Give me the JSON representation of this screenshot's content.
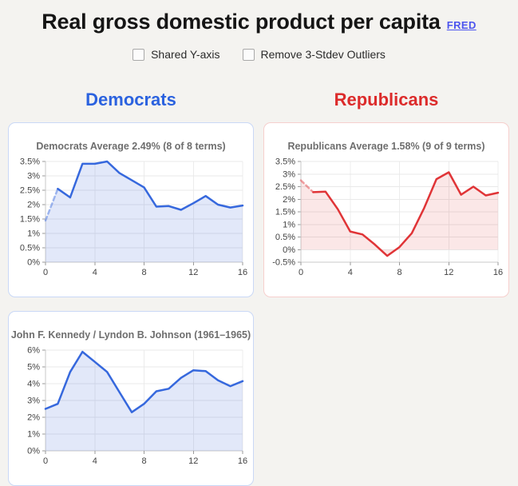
{
  "header": {
    "title": "Real gross domestic product per capita",
    "link_label": "FRED"
  },
  "controls": [
    {
      "label": "Shared Y-axis",
      "checked": false
    },
    {
      "label": "Remove 3-Stdev Outliers",
      "checked": false
    }
  ],
  "columns": [
    {
      "label": "Democrats",
      "color": "#2b62df"
    },
    {
      "label": "Republicans",
      "color": "#dc2b2b"
    }
  ],
  "chart_data": [
    {
      "type": "area",
      "title": "Democrats Average 2.49% (8 of 8 terms)",
      "x": [
        0,
        1,
        2,
        3,
        4,
        5,
        6,
        7,
        8,
        9,
        10,
        11,
        12,
        13,
        14,
        15,
        16
      ],
      "values": [
        1.45,
        2.55,
        2.25,
        3.42,
        3.42,
        3.5,
        3.1,
        2.85,
        2.6,
        1.93,
        1.95,
        1.82,
        2.05,
        2.3,
        2.0,
        1.9,
        1.97
      ],
      "dashed_first_segment": true,
      "x_ticks": [
        0,
        4,
        8,
        12,
        16
      ],
      "y_tick_labels": [
        "3.5%",
        "3%",
        "2.5%",
        "2%",
        "1.5%",
        "1%",
        "0.5%",
        "0%"
      ],
      "ymax": 3.5,
      "ymin": 0,
      "xlim": [
        0,
        16
      ],
      "grid": true,
      "line_color": "#3668dd",
      "fill_color": "rgba(74,114,220,0.16)",
      "border_color": "#c9d8f6"
    },
    {
      "type": "area",
      "title": "Republicans Average 1.58% (9 of 9 terms)",
      "x": [
        0,
        1,
        2,
        3,
        4,
        5,
        6,
        7,
        8,
        9,
        10,
        11,
        12,
        13,
        14,
        15,
        16
      ],
      "values": [
        2.75,
        2.28,
        2.3,
        1.6,
        0.72,
        0.6,
        0.2,
        -0.25,
        0.1,
        0.65,
        1.65,
        2.8,
        3.07,
        2.18,
        2.5,
        2.15,
        2.26
      ],
      "dashed_first_segment": true,
      "x_ticks": [
        0,
        4,
        8,
        12,
        16
      ],
      "y_tick_labels": [
        "3.5%",
        "3%",
        "2.5%",
        "2%",
        "1.5%",
        "1%",
        "0.5%",
        "0%",
        "-0.5%"
      ],
      "ymax": 3.5,
      "ymin": -0.5,
      "xlim": [
        0,
        16
      ],
      "grid": true,
      "line_color": "#e03437",
      "fill_color": "rgba(224,70,70,0.13)",
      "border_color": "#f6cfcd"
    },
    {
      "type": "area",
      "title": "John F. Kennedy / Lyndon B. Johnson (1961–1965)",
      "x": [
        0,
        1,
        2,
        3,
        4,
        5,
        6,
        7,
        8,
        9,
        10,
        11,
        12,
        13,
        14,
        15,
        16
      ],
      "values": [
        2.5,
        2.8,
        4.7,
        5.9,
        5.3,
        4.7,
        3.5,
        2.3,
        2.8,
        3.55,
        3.7,
        4.35,
        4.8,
        4.75,
        4.2,
        3.85,
        4.15
      ],
      "dashed_first_segment": false,
      "x_ticks": [
        0,
        4,
        8,
        12,
        16
      ],
      "y_tick_labels": [
        "6%",
        "5%",
        "4%",
        "3%",
        "2%",
        "1%",
        "0%"
      ],
      "ymax": 6,
      "ymin": 0,
      "xlim": [
        0,
        16
      ],
      "grid": true,
      "line_color": "#3668dd",
      "fill_color": "rgba(74,114,220,0.16)",
      "border_color": "#c9d8f6"
    }
  ]
}
